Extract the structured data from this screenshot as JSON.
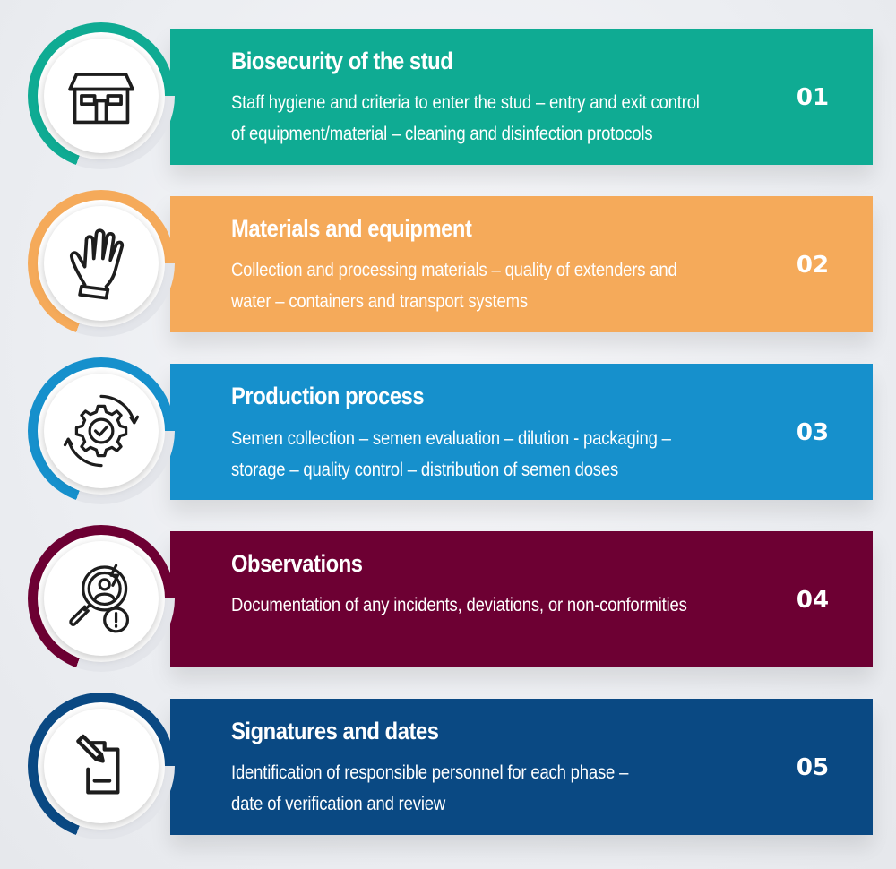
{
  "steps": [
    {
      "title": "Biosecurity of the stud",
      "lines": [
        "Staff hygiene and criteria to enter the stud – entry and exit control",
        "of equipment/material – cleaning and disinfection protocols"
      ],
      "number": "01",
      "color": "#0fab93",
      "icon": "house-icon"
    },
    {
      "title": "Materials and equipment",
      "lines": [
        "Collection and processing materials – quality of extenders and",
        "water – containers and transport systems"
      ],
      "number": "02",
      "color": "#f5aa5a",
      "icon": "glove-icon"
    },
    {
      "title": "Production process",
      "lines": [
        "Semen collection – semen evaluation – dilution - packaging –",
        "storage – quality control – distribution of semen doses"
      ],
      "number": "03",
      "color": "#1690cc",
      "icon": "gear-check-icon"
    },
    {
      "title": "Observations",
      "lines": [
        "Documentation of any incidents, deviations, or non-conformities"
      ],
      "number": "04",
      "color": "#6d0033",
      "icon": "search-alert-icon"
    },
    {
      "title": "Signatures and dates",
      "lines": [
        "Identification of responsible personnel for each phase –",
        "date of verification and review"
      ],
      "number": "05",
      "color": "#0a4983",
      "icon": "sign-document-icon"
    }
  ]
}
